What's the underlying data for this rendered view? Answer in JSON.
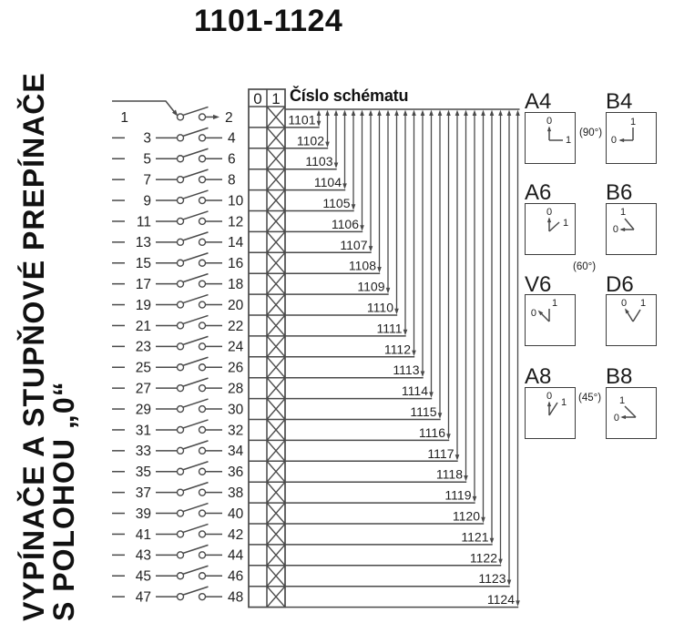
{
  "title": "1101-1124",
  "sidebar": {
    "line1": "VYPÍNAČE A STUPŇOVÉ PREPÍNAČE",
    "line2": "S POLOHOU „0“"
  },
  "schema_table": {
    "col_headers": [
      "0",
      "1"
    ],
    "schema_label": "Číslo schématu",
    "marked_column": "1"
  },
  "contacts": {
    "rows": [
      {
        "left": "1",
        "right": "2"
      },
      {
        "left": "3",
        "right": "4"
      },
      {
        "left": "5",
        "right": "6"
      },
      {
        "left": "7",
        "right": "8"
      },
      {
        "left": "9",
        "right": "10"
      },
      {
        "left": "11",
        "right": "12"
      },
      {
        "left": "13",
        "right": "14"
      },
      {
        "left": "15",
        "right": "16"
      },
      {
        "left": "17",
        "right": "18"
      },
      {
        "left": "19",
        "right": "20"
      },
      {
        "left": "21",
        "right": "22"
      },
      {
        "left": "23",
        "right": "24"
      },
      {
        "left": "25",
        "right": "26"
      },
      {
        "left": "27",
        "right": "28"
      },
      {
        "left": "29",
        "right": "30"
      },
      {
        "left": "31",
        "right": "32"
      },
      {
        "left": "33",
        "right": "34"
      },
      {
        "left": "35",
        "right": "36"
      },
      {
        "left": "37",
        "right": "38"
      },
      {
        "left": "39",
        "right": "40"
      },
      {
        "left": "41",
        "right": "42"
      },
      {
        "left": "43",
        "right": "44"
      },
      {
        "left": "45",
        "right": "46"
      },
      {
        "left": "47",
        "right": "48"
      }
    ]
  },
  "schema_numbers": [
    "1101",
    "1102",
    "1103",
    "1104",
    "1105",
    "1106",
    "1107",
    "1108",
    "1109",
    "1110",
    "1111",
    "1112",
    "1113",
    "1114",
    "1115",
    "1116",
    "1117",
    "1118",
    "1119",
    "1120",
    "1121",
    "1122",
    "1123",
    "1124"
  ],
  "position_panels": {
    "zero_label": "0",
    "one_label": "1",
    "pairs": [
      {
        "left": "A4",
        "right": "B4",
        "note": "(90°)"
      },
      {
        "left": "A6",
        "right": "B6",
        "note": "(60°)"
      },
      {
        "left": "V6",
        "right": "D6",
        "note": ""
      },
      {
        "left": "A8",
        "right": "B8",
        "note": "(45°)"
      }
    ]
  },
  "colors": {
    "line": "#4a4a4a",
    "text": "#1f1f1f",
    "background": "#ffffff"
  }
}
